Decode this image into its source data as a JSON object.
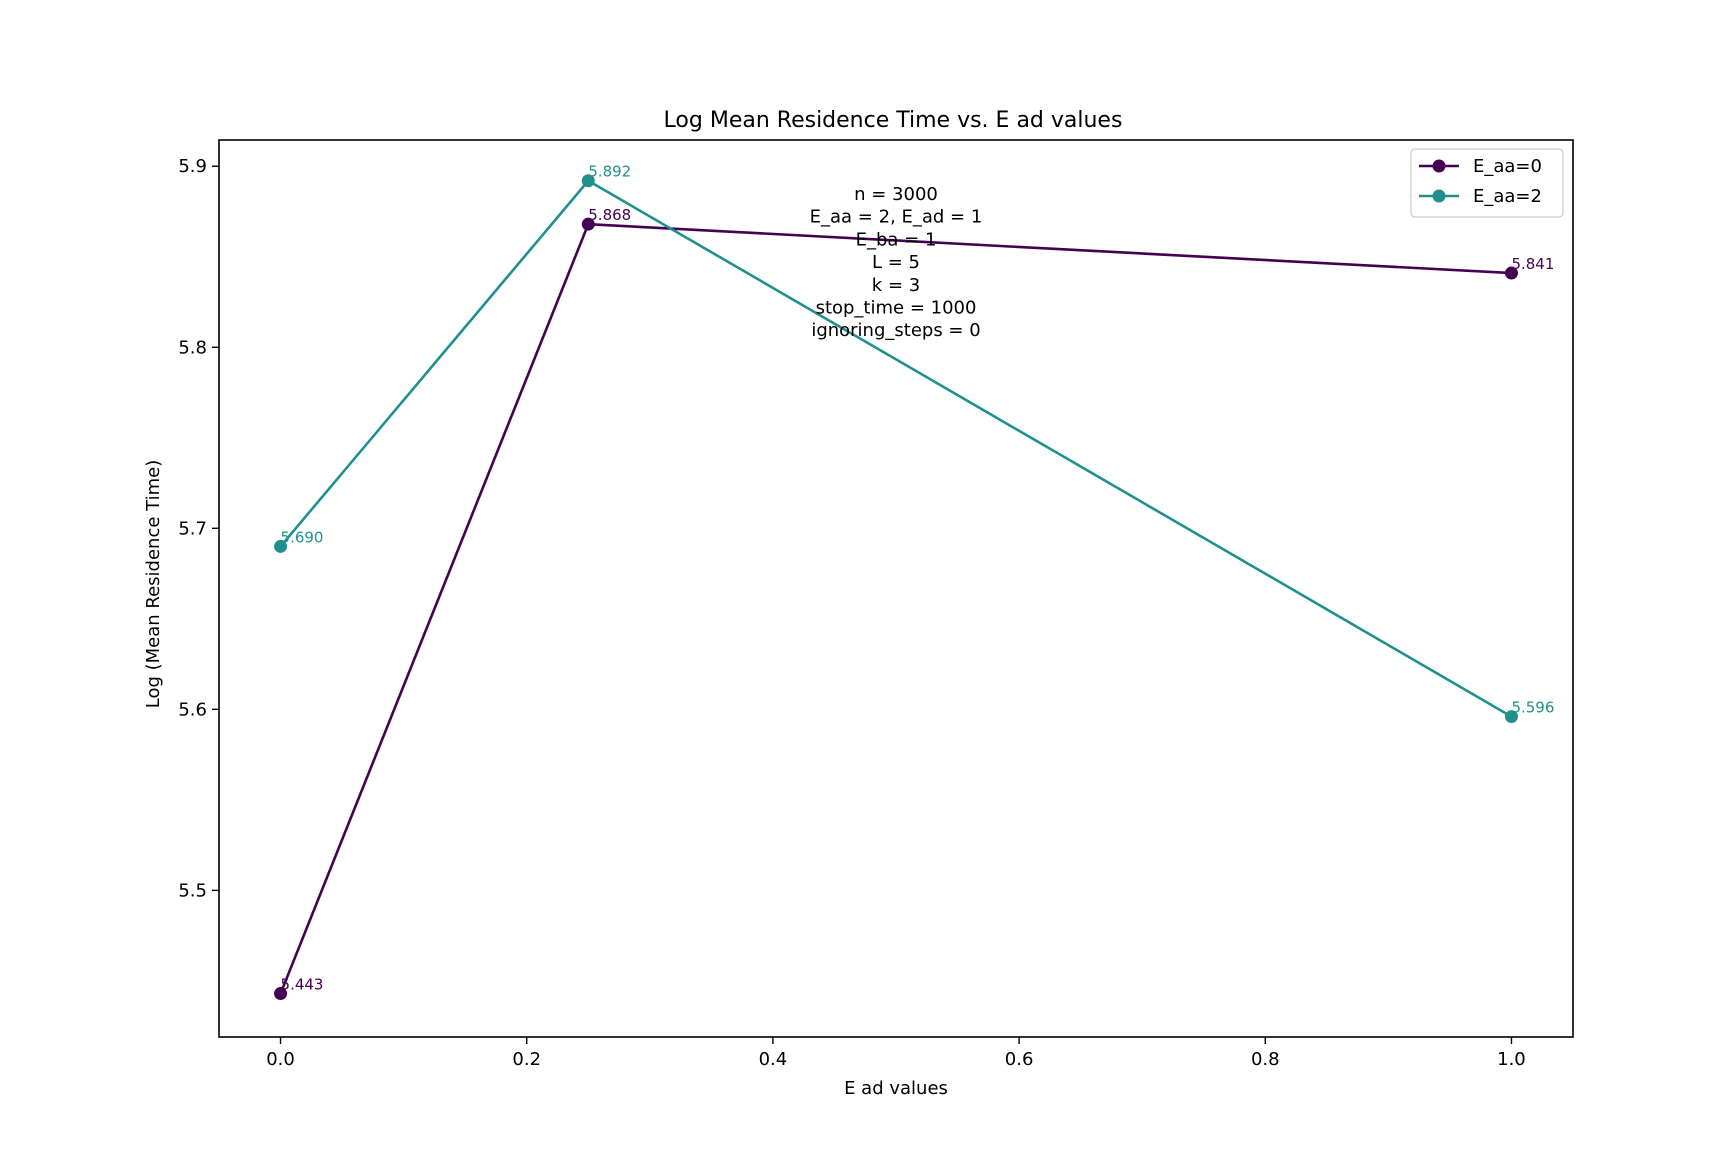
{
  "chart_data": {
    "type": "line",
    "title": "Log Mean Residence Time vs. E ad values",
    "xlabel": "E ad values",
    "ylabel": "Log (Mean Residence Time)",
    "xlim": [
      -0.05,
      1.05
    ],
    "ylim": [
      5.419,
      5.9145
    ],
    "x_ticks": [
      0.0,
      0.2,
      0.4,
      0.6,
      0.8,
      1.0
    ],
    "x_tick_labels": [
      "0.0",
      "0.2",
      "0.4",
      "0.6",
      "0.8",
      "1.0"
    ],
    "y_ticks": [
      5.5,
      5.6,
      5.7,
      5.8,
      5.9
    ],
    "y_tick_labels": [
      "5.5",
      "5.6",
      "5.7",
      "5.8",
      "5.9"
    ],
    "grid": false,
    "legend_position": "top-right",
    "series": [
      {
        "name": "E_aa=0",
        "color": "#440154",
        "x": [
          0.0,
          0.25,
          1.0
        ],
        "y": [
          5.443,
          5.868,
          5.841
        ],
        "labels": [
          "5.443",
          "5.868",
          "5.841"
        ]
      },
      {
        "name": "E_aa=2",
        "color": "#21908d",
        "x": [
          0.0,
          0.25,
          1.0
        ],
        "y": [
          5.69,
          5.892,
          5.596
        ],
        "labels": [
          "5.690",
          "5.892",
          "5.596"
        ]
      }
    ],
    "annotation_lines": [
      "n = 3000",
      "E_aa = 2, E_ad = 1",
      "E_ba = 1",
      "L = 5",
      "k = 3",
      "stop_time = 1000",
      "ignoring_steps = 0"
    ]
  }
}
